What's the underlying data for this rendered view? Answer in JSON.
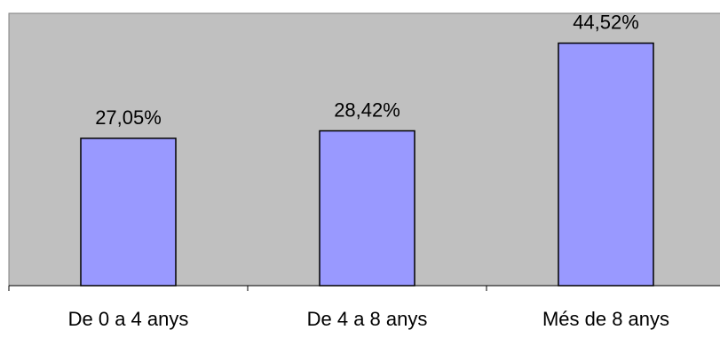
{
  "chart_data": {
    "type": "bar",
    "categories": [
      "De 0 a 4 anys",
      "De 4 a 8 anys",
      "Més de 8 anys"
    ],
    "values": [
      27.05,
      28.42,
      44.52
    ],
    "data_labels": [
      "27,05%",
      "28,42%",
      "44,52%"
    ],
    "ylim": [
      0,
      50
    ],
    "grid": false,
    "legend": "none",
    "colors": {
      "plot_background": "#c0c0c0",
      "bar_fill": "#9999ff",
      "bar_stroke": "#000000",
      "axis": "#000000"
    }
  }
}
